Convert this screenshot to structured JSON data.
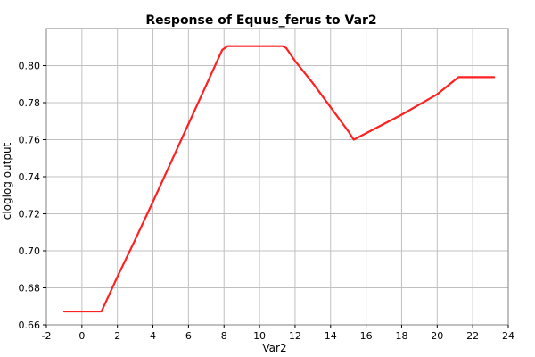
{
  "chart_data": {
    "type": "line",
    "title": "Response of Equus_ferus to Var2",
    "xlabel": "Var2",
    "ylabel": "cloglog output",
    "xlim": [
      -2,
      24
    ],
    "ylim": [
      0.66,
      0.82
    ],
    "xticks": [
      -2,
      0,
      2,
      4,
      6,
      8,
      10,
      12,
      14,
      16,
      18,
      20,
      22,
      24
    ],
    "yticks": [
      0.66,
      0.68,
      0.7,
      0.72,
      0.74,
      0.76,
      0.78,
      0.8
    ],
    "grid": true,
    "legend": "none",
    "series": [
      {
        "color": "#ff2020",
        "x": [
          -1,
          1.1,
          2,
          3,
          4,
          5,
          6,
          7,
          7.9,
          8.2,
          11.3,
          11.5,
          12,
          13,
          14,
          15,
          15.3,
          16,
          18,
          20,
          21.2,
          23.2
        ],
        "y": [
          0.6672,
          0.6672,
          0.686,
          0.706,
          0.7265,
          0.7475,
          0.7685,
          0.7895,
          0.8085,
          0.8105,
          0.8105,
          0.8095,
          0.8025,
          0.7905,
          0.7775,
          0.7645,
          0.76,
          0.7635,
          0.7735,
          0.7845,
          0.7938,
          0.7938
        ]
      }
    ]
  }
}
